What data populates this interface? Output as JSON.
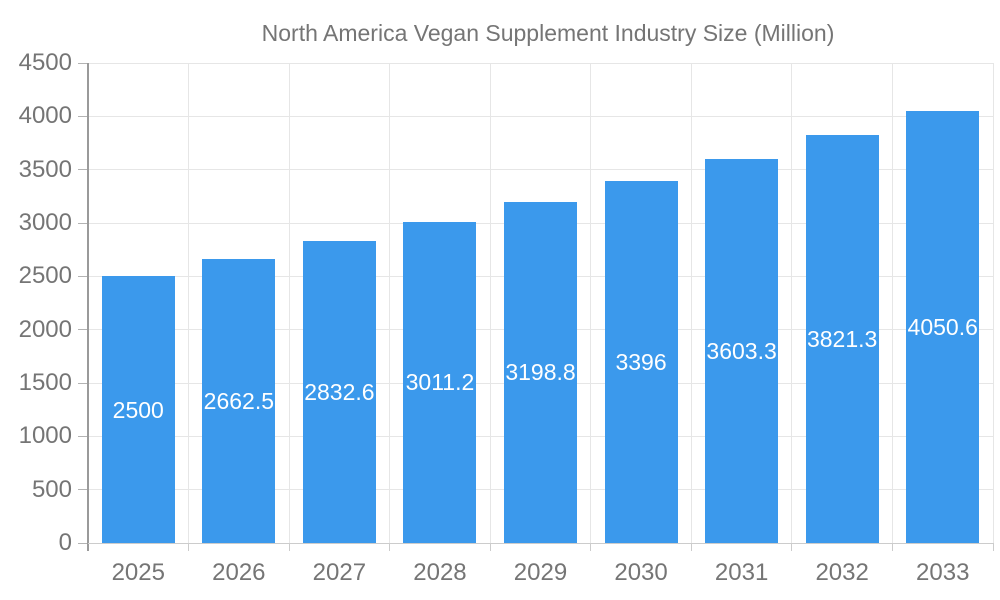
{
  "chart_data": {
    "type": "bar",
    "title": "North America Vegan Supplement Industry Size (Million)",
    "categories": [
      "2025",
      "2026",
      "2027",
      "2028",
      "2029",
      "2030",
      "2031",
      "2032",
      "2033"
    ],
    "values": [
      2500,
      2662.5,
      2832.6,
      3011.2,
      3198.8,
      3396,
      3603.3,
      3821.3,
      4050.6
    ],
    "series": [
      {
        "name": "North America Vegan Supplement Industry Size (Million)",
        "values": [
          2500,
          2662.5,
          2832.6,
          3011.2,
          3198.8,
          3396,
          3603.3,
          3821.3,
          4050.6
        ]
      }
    ],
    "xlabel": "",
    "ylabel": "",
    "ylim": [
      0,
      4500
    ],
    "ytick_step": 500,
    "yticks": [
      0,
      500,
      1000,
      1500,
      2000,
      2500,
      3000,
      3500,
      4000,
      4500
    ],
    "grid": true,
    "legend_position": "top",
    "bar_color": "#3b99ec",
    "bar_value_label_color": "#ffffff",
    "axis_text_color": "#757575",
    "gridline_color": "#e6e6e6"
  },
  "legend": {
    "label": "North America Vegan Supplement Industry Size (Million)"
  }
}
